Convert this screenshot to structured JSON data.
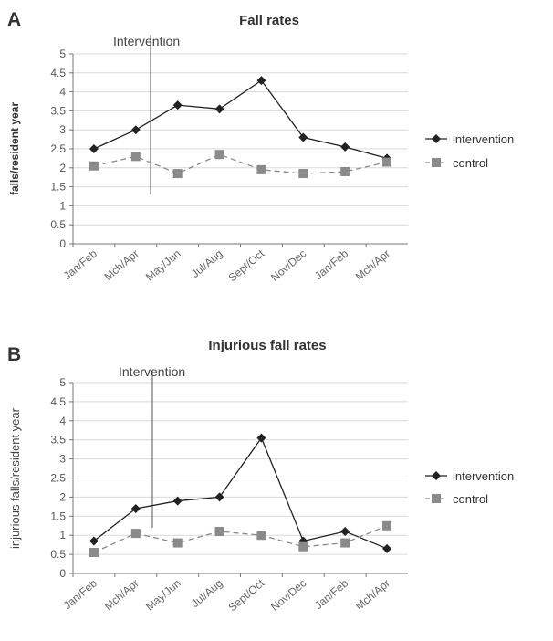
{
  "chart_data": [
    {
      "panel": "A",
      "type": "line",
      "title": "Fall rates",
      "ylabel": "falls/resident year",
      "xlabel": "",
      "categories": [
        "Jan/Feb",
        "Mch/Apr",
        "May/Jun",
        "Jul/Aug",
        "Sept/Oct",
        "Nov/Dec",
        "Jan/Feb",
        "Mch/Apr"
      ],
      "ylim": [
        0,
        5
      ],
      "yticks": [
        "0",
        "0.5",
        "1",
        "1.5",
        "2",
        "2.5",
        "3",
        "3.5",
        "4",
        "4.5",
        "5"
      ],
      "grid": true,
      "legend": "right",
      "annotation": "Intervention",
      "series": [
        {
          "name": "intervention",
          "values": [
            2.5,
            3.0,
            3.65,
            3.55,
            4.3,
            2.8,
            2.55,
            2.25
          ],
          "color": "#222222",
          "marker": "diamond",
          "dash": "solid"
        },
        {
          "name": "control",
          "values": [
            2.05,
            2.3,
            1.85,
            2.35,
            1.95,
            1.85,
            1.9,
            2.15
          ],
          "color": "#8a8a8a",
          "marker": "square",
          "dash": "dashed"
        }
      ]
    },
    {
      "panel": "B",
      "type": "line",
      "title": "Injurious fall rates",
      "ylabel": "injurious falls/resident year",
      "xlabel": "",
      "categories": [
        "Jan/Feb",
        "Mch/Apr",
        "May/Jun",
        "Jul/Aug",
        "Sept/Oct",
        "Nov/Dec",
        "Jan/Feb",
        "Mch/Apr"
      ],
      "ylim": [
        0,
        5
      ],
      "yticks": [
        "0",
        "0.5",
        "1",
        "1.5",
        "2",
        "2.5",
        "3",
        "3.5",
        "4",
        "4.5",
        "5"
      ],
      "grid": true,
      "legend": "right",
      "annotation": "Intervention",
      "series": [
        {
          "name": "intervention",
          "values": [
            0.85,
            1.7,
            1.9,
            2.0,
            3.55,
            0.85,
            1.1,
            0.65
          ],
          "color": "#222222",
          "marker": "diamond",
          "dash": "solid"
        },
        {
          "name": "control",
          "values": [
            0.55,
            1.05,
            0.8,
            1.1,
            1.0,
            0.7,
            0.8,
            1.25
          ],
          "color": "#8a8a8a",
          "marker": "square",
          "dash": "dashed"
        }
      ]
    }
  ]
}
